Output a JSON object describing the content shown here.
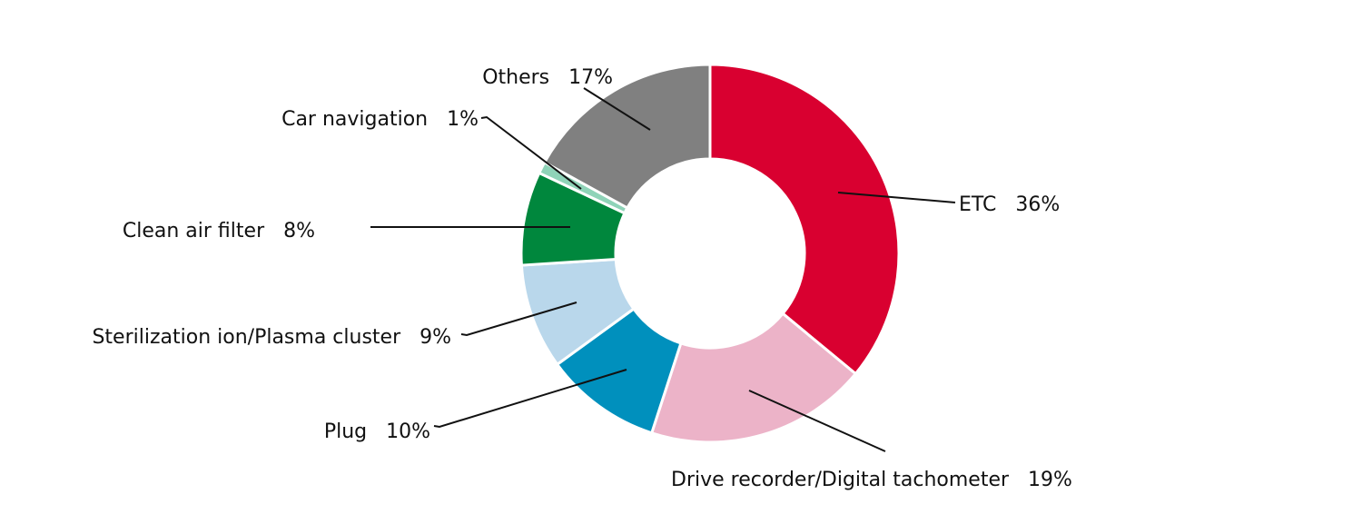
{
  "chart_data": {
    "type": "pie",
    "variant": "donut",
    "title": "",
    "start_angle_deg": 0,
    "direction": "clockwise",
    "slices": [
      {
        "label": "ETC",
        "value": 36,
        "display": "ETC   36%",
        "color": "#d90030"
      },
      {
        "label": "Drive recorder/Digital tachometer",
        "value": 19,
        "display": "Drive recorder/Digital tachometer   19%",
        "color": "#ecb3c8"
      },
      {
        "label": "Plug",
        "value": 10,
        "display": "Plug   10%",
        "color": "#0090bd"
      },
      {
        "label": "Sterilization ion/Plasma cluster",
        "value": 9,
        "display": "Sterilization ion/Plasma cluster   9%",
        "color": "#b9d7eb"
      },
      {
        "label": "Clean air filter",
        "value": 8,
        "display": "Clean air filter   8%",
        "color": "#00873d"
      },
      {
        "label": "Car navigation",
        "value": 1,
        "display": "Car navigation   1%",
        "color": "#8fd3b8"
      },
      {
        "label": "Others",
        "value": 17,
        "display": "Others   17%",
        "color": "#808080"
      }
    ],
    "legend": "none (leader-line labels)",
    "units": "%"
  },
  "labels": {
    "etc": "ETC   36%",
    "drive": "Drive recorder/Digital tachometer   19%",
    "plug": "Plug   10%",
    "sterilization": "Sterilization ion/Plasma cluster   9%",
    "clean_air": "Clean air filter   8%",
    "car_nav": "Car navigation   1%",
    "others": "Others   17%"
  }
}
